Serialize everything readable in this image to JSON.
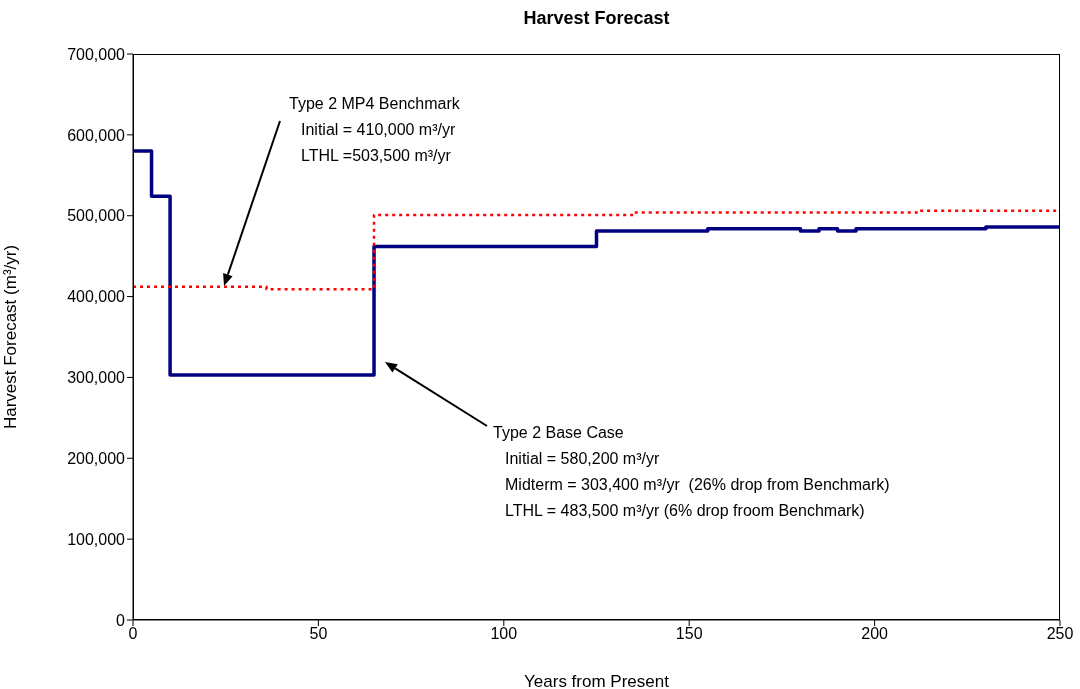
{
  "chart_data": {
    "type": "step",
    "title": "Harvest Forecast",
    "xlabel": "Years from Present",
    "ylabel": "Harvest Forecast (m³/yr)",
    "xlim": [
      0,
      250
    ],
    "xticks": [
      0,
      50,
      100,
      150,
      200,
      250
    ],
    "ylim": [
      0,
      700000
    ],
    "yticks": [
      0,
      {
        "value": 100000,
        "label": "100,000"
      },
      {
        "value": 200000,
        "label": "200,000"
      },
      {
        "value": 300000,
        "label": "300,000"
      },
      {
        "value": 400000,
        "label": "400,000"
      },
      {
        "value": 500000,
        "label": "500,000"
      },
      {
        "value": 600000,
        "label": "600,000"
      },
      {
        "value": 700000,
        "label": "700,000"
      }
    ],
    "marker": "none",
    "series": [
      {
        "color": "#000080",
        "line_style": "solid",
        "x": [
          0,
          5,
          10,
          65,
          125,
          155,
          180,
          185,
          190,
          195,
          230,
          250
        ],
        "values": [
          580000,
          524000,
          303000,
          462000,
          481000,
          484000,
          481000,
          484000,
          481000,
          484000,
          486000,
          486000
        ]
      },
      {
        "color": "#ff0000",
        "line_style": "dotted",
        "x": [
          0,
          36,
          65,
          135,
          212,
          250
        ],
        "values": [
          412000,
          409000,
          501000,
          504000,
          506000,
          506000
        ]
      }
    ],
    "annotations": [
      "Type 2 MP4 Benchmark\nInitial = 410,000 m³/yr\nLTHL =503,500 m³/yr",
      "Type 2 Base Case\nInitial = 580,200 m³/yr\nMidterm = 303,400 m³/yr  (26% drop from Benchmark)\nLTHL = 483,500 m³/yr (6% drop froom Benchmark)"
    ]
  }
}
